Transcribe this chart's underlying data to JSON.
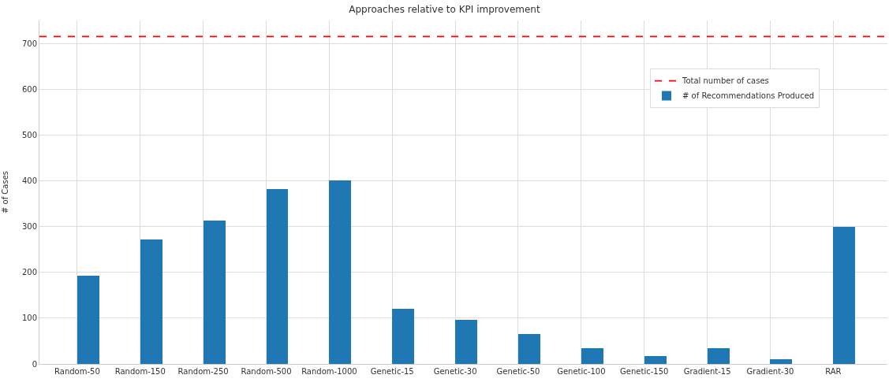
{
  "chart_data": {
    "type": "bar",
    "title": "Approaches relative to KPI improvement",
    "ylabel": "# of Cases",
    "categories": [
      "Random-50",
      "Random-150",
      "Random-250",
      "Random-500",
      "Random-1000",
      "Genetic-15",
      "Genetic-30",
      "Genetic-50",
      "Genetic-100",
      "Genetic-150",
      "Gradient-15",
      "Gradient-30",
      "RAR"
    ],
    "series": [
      {
        "name": "# of Recommendations Produced",
        "color": "#1f77b4",
        "values": [
          192,
          271,
          313,
          382,
          401,
          120,
          96,
          66,
          34,
          18,
          34,
          10,
          300
        ]
      }
    ],
    "ylim": [
      0,
      750
    ],
    "yticks": [
      0,
      100,
      200,
      300,
      400,
      500,
      600,
      700
    ],
    "ref_lines": [
      {
        "axis": "y",
        "value": 715,
        "label": "Total number of cases",
        "color": "#ff0000",
        "line_style": "dashed"
      }
    ],
    "grid": true,
    "legend": "top right"
  }
}
